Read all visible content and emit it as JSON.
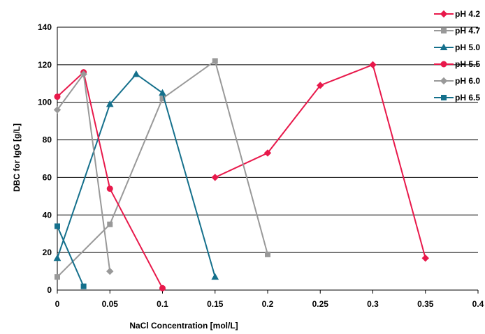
{
  "chart_data": {
    "type": "line",
    "xlabel": "NaCl Concentration [mol/L]",
    "ylabel": "DBC for IgG [g/L]",
    "xlim": [
      0,
      0.4
    ],
    "ylim": [
      0,
      140
    ],
    "x_ticks": [
      0,
      0.05,
      0.1,
      0.15,
      0.2,
      0.25,
      0.3,
      0.35,
      0.4
    ],
    "x_tick_labels": [
      "0",
      "0.05",
      "0.1",
      "0.15",
      "0.2",
      "0.25",
      "0.3",
      "0.35",
      "0.4"
    ],
    "y_ticks": [
      0,
      20,
      40,
      60,
      80,
      100,
      120,
      140
    ],
    "y_tick_labels": [
      "0",
      "20",
      "40",
      "60",
      "80",
      "100",
      "120",
      "140"
    ],
    "grid": "horizontal",
    "legend_position": "right",
    "series": [
      {
        "name": "pH 4.2",
        "color": "#e8194b",
        "marker": "diamond",
        "x": [
          0.15,
          0.2,
          0.25,
          0.3,
          0.35
        ],
        "y": [
          60,
          73,
          109,
          120,
          17
        ]
      },
      {
        "name": "pH 4.7",
        "color": "#999999",
        "marker": "square",
        "x": [
          0,
          0.05,
          0.1,
          0.15,
          0.2
        ],
        "y": [
          7,
          35,
          102,
          122,
          19
        ]
      },
      {
        "name": "pH 5.0",
        "color": "#15708c",
        "marker": "triangle",
        "x": [
          0,
          0.05,
          0.075,
          0.1,
          0.15
        ],
        "y": [
          17,
          99,
          115,
          105,
          7
        ]
      },
      {
        "name": "pH 5.5",
        "color": "#e8194b",
        "marker": "circle",
        "x": [
          0,
          0.025,
          0.05,
          0.1
        ],
        "y": [
          103,
          116,
          54,
          1
        ]
      },
      {
        "name": "pH 6.0",
        "color": "#999999",
        "marker": "diamond",
        "x": [
          0,
          0.025,
          0.05
        ],
        "y": [
          96,
          115,
          10
        ]
      },
      {
        "name": "pH 6.5",
        "color": "#15708c",
        "marker": "square",
        "x": [
          0,
          0.025
        ],
        "y": [
          34,
          2
        ]
      }
    ]
  }
}
